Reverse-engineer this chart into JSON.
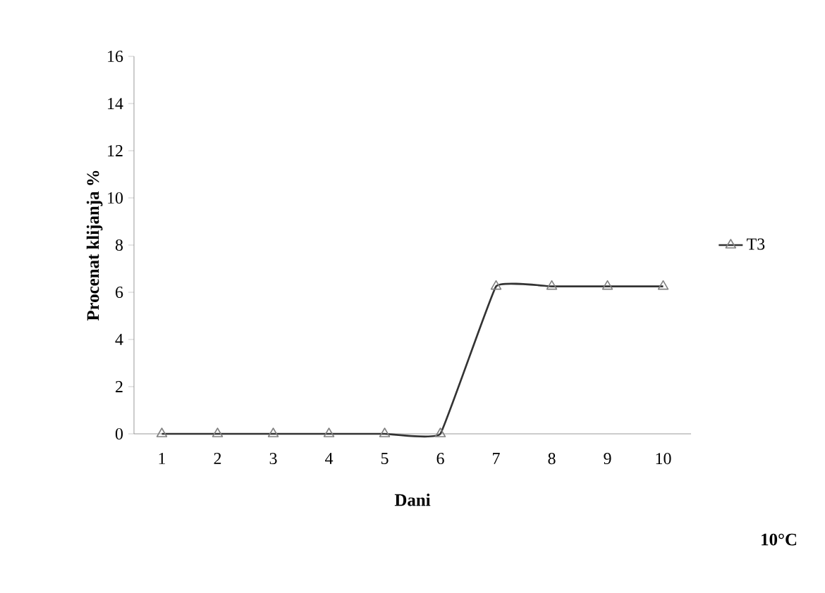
{
  "chart_data": {
    "type": "line",
    "xlabel": "Dani",
    "ylabel": "Procenat klijanja %",
    "categories": [
      "1",
      "2",
      "3",
      "4",
      "5",
      "6",
      "7",
      "8",
      "9",
      "10"
    ],
    "series": [
      {
        "name": "T3",
        "color": "#333333",
        "values": [
          0,
          0,
          0,
          0,
          0,
          0,
          6.25,
          6.25,
          6.25,
          6.25
        ]
      }
    ],
    "ylim": [
      0,
      16
    ],
    "yticks": [
      0,
      2,
      4,
      6,
      8,
      10,
      12,
      14,
      16
    ],
    "legend": "right",
    "marker": "triangle",
    "line_style": "solid",
    "annotations": [
      "10°C"
    ]
  }
}
